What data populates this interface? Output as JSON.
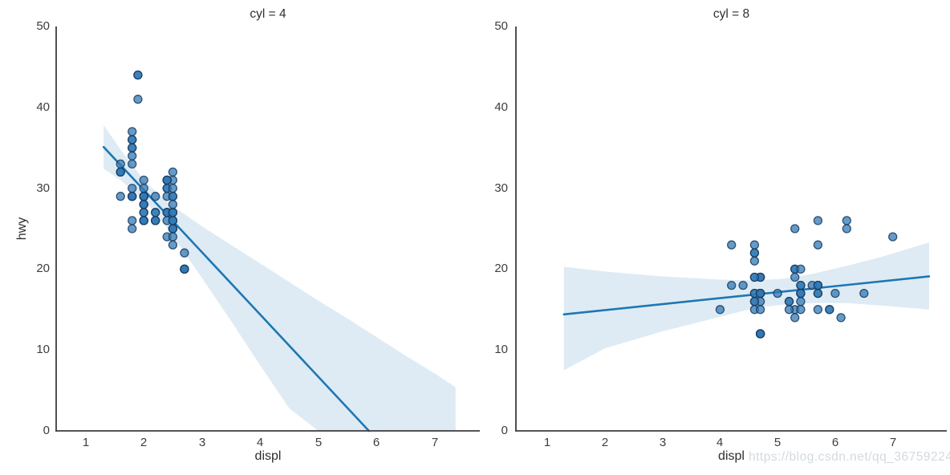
{
  "watermark": "https://blog.csdn.net/qq_36759224",
  "colors": {
    "point_fill": "#3179b5",
    "point_edge": "#173a5e",
    "line": "#1f77b4",
    "band": "rgba(31,119,180,0.15)",
    "spine": "#3d3d3d",
    "tick_text": "#3d3d3d",
    "label_text": "#2e2e2e",
    "watermark_text": "#d2dadf",
    "background": "#ffffff"
  },
  "chart_data": [
    {
      "type": "scatter",
      "title": "cyl = 4",
      "xlabel": "displ",
      "ylabel": "hwy",
      "xlim": [
        0.494,
        7.777
      ],
      "ylim": [
        0,
        50
      ],
      "x_ticks": [
        1,
        2,
        3,
        4,
        5,
        6,
        7
      ],
      "y_ticks": [
        0,
        10,
        20,
        30,
        40,
        50
      ],
      "grid": false,
      "legend": "none",
      "points": [
        [
          1.8,
          29
        ],
        [
          1.8,
          29
        ],
        [
          2.0,
          31
        ],
        [
          2.0,
          30
        ],
        [
          1.8,
          26
        ],
        [
          1.8,
          25
        ],
        [
          2.0,
          28
        ],
        [
          2.0,
          27
        ],
        [
          2.4,
          27
        ],
        [
          2.4,
          30
        ],
        [
          2.4,
          24
        ],
        [
          1.6,
          33
        ],
        [
          1.6,
          32
        ],
        [
          1.6,
          32
        ],
        [
          1.6,
          29
        ],
        [
          1.6,
          32
        ],
        [
          1.8,
          34
        ],
        [
          1.8,
          36
        ],
        [
          1.8,
          36
        ],
        [
          2.0,
          29
        ],
        [
          2.4,
          26
        ],
        [
          2.4,
          27
        ],
        [
          2.4,
          30
        ],
        [
          2.4,
          31
        ],
        [
          2.0,
          26
        ],
        [
          2.0,
          29
        ],
        [
          2.0,
          28
        ],
        [
          2.0,
          27
        ],
        [
          2.4,
          29
        ],
        [
          2.4,
          27
        ],
        [
          2.5,
          31
        ],
        [
          2.5,
          32
        ],
        [
          2.5,
          25
        ],
        [
          2.5,
          24
        ],
        [
          2.5,
          27
        ],
        [
          2.5,
          25
        ],
        [
          2.5,
          26
        ],
        [
          2.5,
          23
        ],
        [
          2.2,
          26
        ],
        [
          2.2,
          26
        ],
        [
          2.5,
          26
        ],
        [
          2.5,
          26
        ],
        [
          2.5,
          25
        ],
        [
          2.5,
          27
        ],
        [
          2.5,
          25
        ],
        [
          2.5,
          27
        ],
        [
          2.7,
          20
        ],
        [
          2.7,
          20
        ],
        [
          2.2,
          29
        ],
        [
          2.2,
          27
        ],
        [
          2.4,
          31
        ],
        [
          2.4,
          31
        ],
        [
          2.2,
          27
        ],
        [
          2.2,
          26
        ],
        [
          2.4,
          31
        ],
        [
          2.4,
          31
        ],
        [
          1.8,
          30
        ],
        [
          1.8,
          33
        ],
        [
          1.8,
          35
        ],
        [
          1.8,
          37
        ],
        [
          1.8,
          35
        ],
        [
          2.7,
          20
        ],
        [
          2.7,
          20
        ],
        [
          2.7,
          22
        ],
        [
          2.0,
          29
        ],
        [
          2.0,
          26
        ],
        [
          2.0,
          29
        ],
        [
          2.0,
          29
        ],
        [
          1.9,
          44
        ],
        [
          2.0,
          29
        ],
        [
          2.0,
          26
        ],
        [
          2.0,
          29
        ],
        [
          2.0,
          29
        ],
        [
          2.5,
          29
        ],
        [
          2.5,
          30
        ],
        [
          1.9,
          44
        ],
        [
          1.9,
          41
        ],
        [
          2.0,
          29
        ],
        [
          2.0,
          26
        ],
        [
          2.5,
          28
        ],
        [
          2.5,
          29
        ],
        [
          1.8,
          29
        ],
        [
          1.8,
          29
        ],
        [
          2.0,
          28
        ],
        [
          2.0,
          29
        ]
      ],
      "regression_line": {
        "x1": 1.31,
        "y1": 35.1,
        "x2": 5.87,
        "y2": 0.0
      },
      "ci_band": {
        "x": [
          1.31,
          1.6,
          2.0,
          2.4,
          3.0,
          3.5,
          4.0,
          4.5,
          5.0,
          5.5,
          6.0,
          6.5,
          7.0,
          7.36
        ],
        "upper": [
          37.8,
          34.8,
          31.0,
          28.3,
          25.3,
          23.0,
          20.7,
          18.4,
          16.1,
          13.9,
          11.6,
          9.3,
          7.1,
          5.4
        ],
        "lower": [
          32.4,
          31.0,
          28.6,
          25.1,
          18.9,
          13.6,
          8.1,
          2.8,
          -2.7,
          -8.1,
          -13.6,
          -19.1,
          -24.5,
          -28.4
        ]
      }
    },
    {
      "type": "scatter",
      "title": "cyl = 8",
      "xlabel": "displ",
      "ylabel": "",
      "xlim": [
        0.457,
        7.937
      ],
      "ylim": [
        0,
        50
      ],
      "x_ticks": [
        1,
        2,
        3,
        4,
        5,
        6,
        7
      ],
      "y_ticks": [
        0,
        10,
        20,
        30,
        40,
        50
      ],
      "grid": false,
      "legend": "none",
      "points": [
        [
          4.2,
          23
        ],
        [
          5.3,
          20
        ],
        [
          5.3,
          15
        ],
        [
          5.3,
          20
        ],
        [
          5.7,
          17
        ],
        [
          6.0,
          17
        ],
        [
          5.7,
          26
        ],
        [
          5.7,
          23
        ],
        [
          6.2,
          26
        ],
        [
          6.2,
          25
        ],
        [
          7.0,
          24
        ],
        [
          5.3,
          19
        ],
        [
          5.3,
          14
        ],
        [
          5.7,
          15
        ],
        [
          6.5,
          17
        ],
        [
          4.7,
          19
        ],
        [
          4.7,
          19
        ],
        [
          4.7,
          12
        ],
        [
          4.7,
          17
        ],
        [
          4.7,
          12
        ],
        [
          4.7,
          17
        ],
        [
          5.2,
          16
        ],
        [
          5.7,
          18
        ],
        [
          5.9,
          15
        ],
        [
          4.7,
          17
        ],
        [
          4.7,
          12
        ],
        [
          4.7,
          16
        ],
        [
          4.7,
          12
        ],
        [
          5.2,
          15
        ],
        [
          5.2,
          16
        ],
        [
          5.7,
          17
        ],
        [
          5.9,
          15
        ],
        [
          4.6,
          17
        ],
        [
          5.4,
          17
        ],
        [
          5.4,
          18
        ],
        [
          4.6,
          19
        ],
        [
          4.6,
          16
        ],
        [
          4.6,
          16
        ],
        [
          4.6,
          17
        ],
        [
          5.4,
          15
        ],
        [
          5.4,
          17
        ],
        [
          4.6,
          21
        ],
        [
          4.6,
          22
        ],
        [
          4.6,
          23
        ],
        [
          4.6,
          22
        ],
        [
          5.4,
          20
        ],
        [
          4.7,
          17
        ],
        [
          4.7,
          12
        ],
        [
          4.7,
          19
        ],
        [
          5.7,
          18
        ],
        [
          6.1,
          14
        ],
        [
          4.0,
          15
        ],
        [
          4.2,
          18
        ],
        [
          4.4,
          18
        ],
        [
          4.6,
          15
        ],
        [
          5.4,
          17
        ],
        [
          5.4,
          16
        ],
        [
          5.4,
          18
        ],
        [
          4.6,
          19
        ],
        [
          5.0,
          17
        ],
        [
          5.6,
          18
        ],
        [
          5.3,
          25
        ],
        [
          4.7,
          17
        ],
        [
          4.7,
          15
        ],
        [
          5.7,
          18
        ]
      ],
      "regression_line": {
        "x1": 1.29,
        "y1": 14.4,
        "x2": 7.63,
        "y2": 19.1
      },
      "ci_band": {
        "x": [
          1.29,
          2.0,
          3.0,
          4.0,
          4.6,
          5.08,
          5.6,
          6.2,
          6.8,
          7.63
        ],
        "upper": [
          20.3,
          19.7,
          19.1,
          18.7,
          18.6,
          18.8,
          19.4,
          20.4,
          21.5,
          23.3
        ],
        "lower": [
          7.5,
          10.2,
          12.3,
          14.1,
          15.2,
          15.6,
          15.8,
          15.8,
          15.5,
          15.0
        ]
      }
    }
  ]
}
